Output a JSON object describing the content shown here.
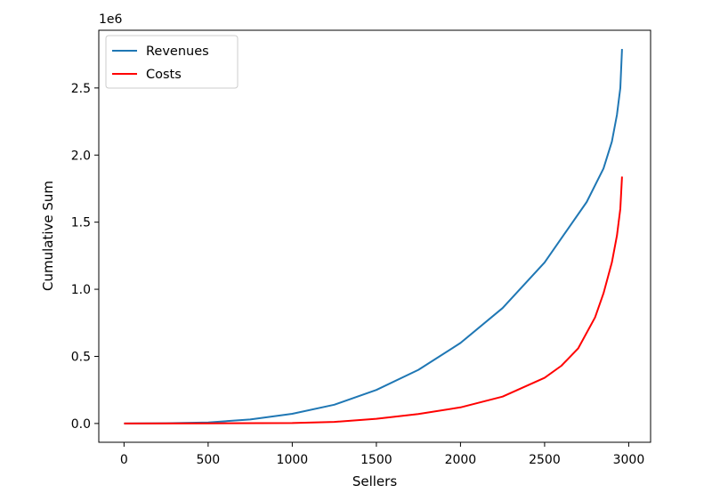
{
  "chart_data": {
    "type": "line",
    "title": "",
    "xlabel": "Sellers",
    "ylabel": "Cumulative Sum",
    "y_offset_label": "1e6",
    "xlim": [
      -150,
      3130
    ],
    "ylim": [
      -140000,
      2930000
    ],
    "x_ticks": [
      0,
      500,
      1000,
      1500,
      2000,
      2500,
      3000
    ],
    "x_tick_labels": [
      "0",
      "500",
      "1000",
      "1500",
      "2000",
      "2500",
      "3000"
    ],
    "y_ticks": [
      0,
      500000,
      1000000,
      1500000,
      2000000,
      2500000
    ],
    "y_tick_labels": [
      "0.0",
      "0.5",
      "1.0",
      "1.5",
      "2.0",
      "2.5"
    ],
    "grid": false,
    "legend_position": "top-left",
    "series": [
      {
        "name": "Revenues",
        "color": "#1f77b4",
        "x": [
          0,
          250,
          500,
          750,
          1000,
          1250,
          1500,
          1750,
          2000,
          2250,
          2500,
          2750,
          2850,
          2900,
          2930,
          2950,
          2960
        ],
        "y": [
          0,
          2000,
          8000,
          30000,
          72000,
          140000,
          250000,
          400000,
          600000,
          860000,
          1200000,
          1650000,
          1900000,
          2100000,
          2300000,
          2500000,
          2790000
        ]
      },
      {
        "name": "Costs",
        "color": "#ff0000",
        "x": [
          0,
          500,
          1000,
          1250,
          1500,
          1750,
          2000,
          2250,
          2500,
          2600,
          2700,
          2800,
          2850,
          2900,
          2930,
          2950,
          2960
        ],
        "y": [
          0,
          1000,
          3000,
          12000,
          35000,
          70000,
          120000,
          200000,
          340000,
          430000,
          560000,
          790000,
          970000,
          1200000,
          1400000,
          1600000,
          1840000
        ]
      }
    ]
  }
}
